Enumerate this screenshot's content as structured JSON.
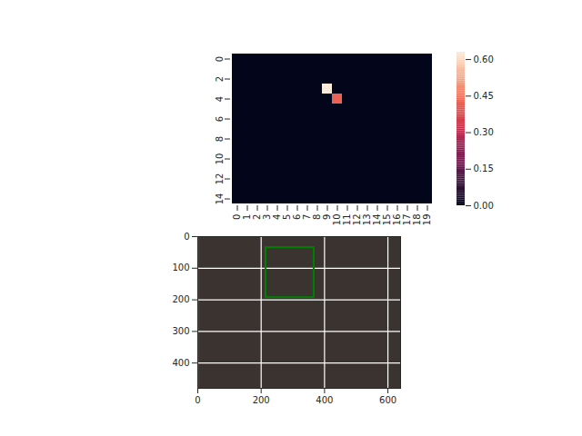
{
  "chart_data": [
    {
      "type": "heatmap",
      "x": [
        0,
        1,
        2,
        3,
        4,
        5,
        6,
        7,
        8,
        9,
        10,
        11,
        12,
        13,
        14,
        15,
        16,
        17,
        18,
        19
      ],
      "y": [
        0,
        1,
        2,
        3,
        4,
        5,
        6,
        7,
        8,
        9,
        10,
        11,
        12,
        13,
        14
      ],
      "xticks": [
        0,
        1,
        2,
        3,
        4,
        5,
        6,
        7,
        8,
        9,
        10,
        11,
        12,
        13,
        14,
        15,
        16,
        17,
        18,
        19
      ],
      "yticks": [
        0,
        2,
        4,
        6,
        8,
        10,
        12,
        14
      ],
      "values": [
        [
          0,
          0,
          0,
          0,
          0,
          0,
          0,
          0,
          0,
          0,
          0,
          0,
          0,
          0,
          0,
          0,
          0,
          0,
          0,
          0
        ],
        [
          0,
          0,
          0,
          0,
          0,
          0,
          0,
          0,
          0,
          0,
          0,
          0,
          0,
          0,
          0,
          0,
          0,
          0,
          0,
          0
        ],
        [
          0,
          0,
          0,
          0,
          0,
          0,
          0,
          0,
          0,
          0,
          0,
          0,
          0,
          0,
          0,
          0,
          0,
          0,
          0,
          0
        ],
        [
          0,
          0,
          0,
          0,
          0,
          0,
          0,
          0,
          0,
          0.63,
          0,
          0,
          0,
          0,
          0,
          0,
          0,
          0,
          0,
          0
        ],
        [
          0,
          0,
          0,
          0,
          0,
          0,
          0,
          0,
          0,
          0,
          0.42,
          0,
          0,
          0,
          0,
          0,
          0,
          0,
          0,
          0
        ],
        [
          0,
          0,
          0,
          0,
          0,
          0,
          0,
          0,
          0,
          0,
          0,
          0,
          0,
          0,
          0,
          0,
          0,
          0,
          0,
          0
        ],
        [
          0,
          0,
          0,
          0,
          0,
          0,
          0,
          0,
          0,
          0,
          0,
          0,
          0,
          0,
          0,
          0,
          0,
          0,
          0,
          0
        ],
        [
          0,
          0,
          0,
          0,
          0,
          0,
          0,
          0,
          0,
          0,
          0,
          0,
          0,
          0,
          0,
          0,
          0,
          0,
          0,
          0
        ],
        [
          0,
          0,
          0,
          0,
          0,
          0,
          0,
          0,
          0,
          0,
          0,
          0,
          0,
          0,
          0,
          0,
          0,
          0,
          0,
          0
        ],
        [
          0,
          0,
          0,
          0,
          0,
          0,
          0,
          0,
          0,
          0,
          0,
          0,
          0,
          0,
          0,
          0,
          0,
          0,
          0,
          0
        ],
        [
          0,
          0,
          0,
          0,
          0,
          0,
          0,
          0,
          0,
          0,
          0,
          0,
          0,
          0,
          0,
          0,
          0,
          0,
          0,
          0
        ],
        [
          0,
          0,
          0,
          0,
          0,
          0,
          0,
          0,
          0,
          0,
          0,
          0,
          0,
          0,
          0,
          0,
          0,
          0,
          0,
          0
        ],
        [
          0,
          0,
          0,
          0,
          0,
          0,
          0,
          0,
          0,
          0,
          0,
          0,
          0,
          0,
          0,
          0,
          0,
          0,
          0,
          0
        ],
        [
          0,
          0,
          0,
          0,
          0,
          0,
          0,
          0,
          0,
          0,
          0,
          0,
          0,
          0,
          0,
          0,
          0,
          0,
          0,
          0
        ],
        [
          0,
          0,
          0,
          0,
          0,
          0,
          0,
          0,
          0,
          0,
          0,
          0,
          0,
          0,
          0,
          0,
          0,
          0,
          0,
          0
        ]
      ],
      "colorbar": {
        "range": [
          0,
          0.63
        ],
        "ticks": [
          {
            "value": 0,
            "label": "0.00"
          },
          {
            "value": 0.15,
            "label": "0.15"
          },
          {
            "value": 0.3,
            "label": "0.30"
          },
          {
            "value": 0.45,
            "label": "0.45"
          },
          {
            "value": 0.6,
            "label": "0.60"
          }
        ]
      }
    },
    {
      "type": "image",
      "xlim": [
        0,
        640
      ],
      "ylim": [
        480,
        0
      ],
      "xticks": [
        0,
        200,
        400,
        600
      ],
      "yticks": [
        0,
        100,
        200,
        300,
        400
      ],
      "grid": true,
      "box": {
        "x": [
          215,
          367
        ],
        "y": [
          35,
          193
        ],
        "color": "green"
      }
    }
  ]
}
